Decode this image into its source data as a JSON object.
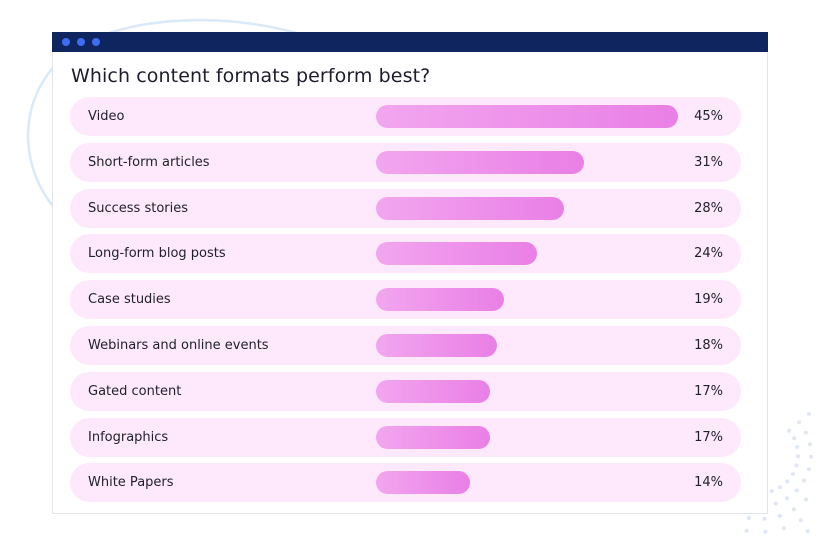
{
  "colors": {
    "titlebar": "#0f2560",
    "window_dot": "#3d6df2",
    "row_background": "#fde9fb",
    "bar_start": "#f2a6ef",
    "bar_end": "#e97fe6"
  },
  "chart_data": {
    "type": "bar",
    "orientation": "horizontal",
    "title": "Which content formats perform best?",
    "categories": [
      "Video",
      "Short-form articles",
      "Success stories",
      "Long-form blog posts",
      "Case studies",
      "Webinars and online events",
      "Gated content",
      "Infographics",
      "White Papers"
    ],
    "values": [
      45,
      31,
      28,
      24,
      19,
      18,
      17,
      17,
      14
    ],
    "value_labels": [
      "45%",
      "31%",
      "28%",
      "24%",
      "19%",
      "18%",
      "17%",
      "17%",
      "14%"
    ],
    "xlim": [
      0,
      45
    ],
    "grid": false,
    "legend": "none"
  }
}
